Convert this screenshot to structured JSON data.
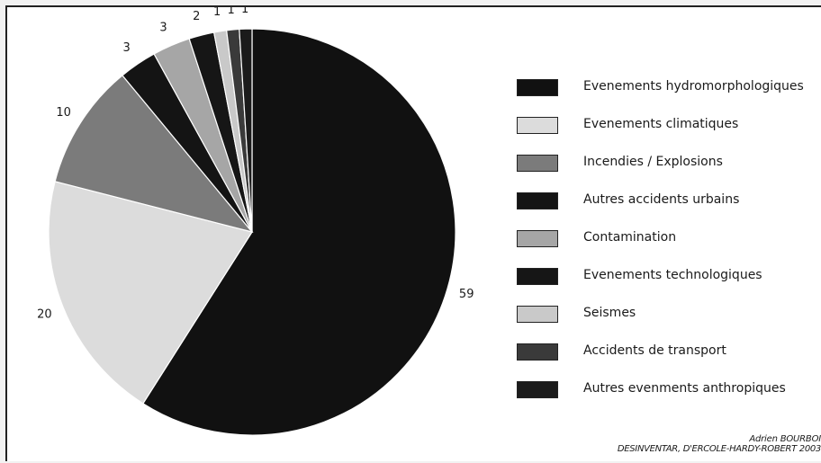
{
  "chart_data": {
    "type": "pie",
    "categories": [
      "Evenements hydromorphologiques",
      "Evenements climatiques",
      "Incendies / Explosions",
      "Autres accidents urbains",
      "Contamination",
      "Evenements technologiques",
      "Seismes",
      "Accidents de transport",
      "Autres evenments anthropiques"
    ],
    "values": [
      59,
      20,
      10,
      3,
      3,
      2,
      1,
      1,
      1
    ],
    "value_labels": [
      "59",
      "20",
      "10",
      "3",
      "3",
      "2",
      "1",
      "1",
      "1"
    ],
    "colors": [
      "#111111",
      "#dcdcdc",
      "#7b7b7b",
      "#141414",
      "#a6a6a6",
      "#161616",
      "#c9c9c9",
      "#3a3a3a",
      "#1b1b1b"
    ],
    "start_angle": "12 o'clock",
    "direction": "clockwise",
    "legend_position": "right"
  },
  "credit": {
    "line1": "Adrien BOURBOI",
    "line2": "DESINVENTAR, D'ERCOLE-HARDY-ROBERT 2003"
  }
}
